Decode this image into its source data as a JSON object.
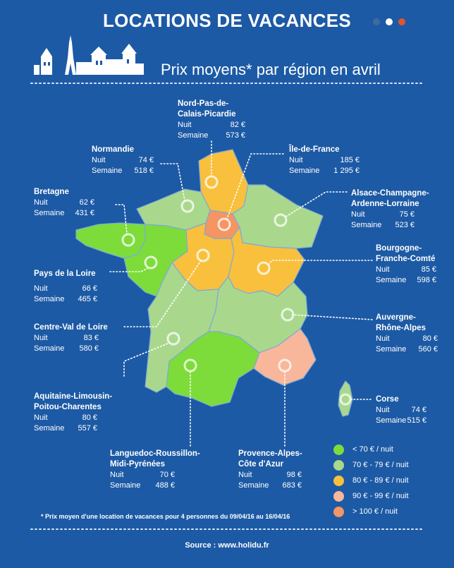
{
  "header": {
    "title": "LOCATIONS DE VACANCES",
    "subtitle": "Prix moyens* par région en avril"
  },
  "colors": {
    "background": "#1d5aa5",
    "lt70": "#7ddc3a",
    "r70_79": "#a9d88c",
    "r80_89": "#f8c03d",
    "r90_99": "#f8b79a",
    "gt100": "#f49563"
  },
  "labels": {
    "nuit": "Nuit",
    "semaine": "Semaine"
  },
  "regions": [
    {
      "id": "nord",
      "name1": "Nord-Pas-de-",
      "name2": "Calais-Picardie",
      "nuit": "82 €",
      "semaine": "573 €"
    },
    {
      "id": "normandie",
      "name1": "Normandie",
      "name2": "",
      "nuit": "74 €",
      "semaine": "518 €"
    },
    {
      "id": "idf",
      "name1": "Île-de-France",
      "name2": "",
      "nuit": "185 €",
      "semaine": "1 295 €"
    },
    {
      "id": "bretagne",
      "name1": "Bretagne",
      "name2": "",
      "nuit": "62 €",
      "semaine": "431 €"
    },
    {
      "id": "alsace",
      "name1": "Alsace-Champagne-",
      "name2": "Ardenne-Lorraine",
      "nuit": "75 €",
      "semaine": "523 €"
    },
    {
      "id": "bourgogne",
      "name1": "Bourgogne-",
      "name2": "Franche-Comté",
      "nuit": "85 €",
      "semaine": "598 €"
    },
    {
      "id": "pdl",
      "name1": "Pays de la Loire",
      "name2": "",
      "nuit": "66 €",
      "semaine": "465 €"
    },
    {
      "id": "centre",
      "name1": "Centre-Val de Loire",
      "name2": "",
      "nuit": "83 €",
      "semaine": "580 €"
    },
    {
      "id": "auvergne",
      "name1": "Auvergne-",
      "name2": "Rhône-Alpes",
      "nuit": "80 €",
      "semaine": "560 €"
    },
    {
      "id": "aquitaine",
      "name1": "Aquitaine-Limousin-",
      "name2": "Poitou-Charentes",
      "nuit": "80 €",
      "semaine": "557 €"
    },
    {
      "id": "corse",
      "name1": "Corse",
      "name2": "",
      "nuit": "74 €",
      "semaine": "515 €"
    },
    {
      "id": "languedoc",
      "name1": "Languedoc-Roussillon-",
      "name2": "Midi-Pyrénées",
      "nuit": "70 €",
      "semaine": "488 €"
    },
    {
      "id": "paca",
      "name1": "Provence-Alpes-",
      "name2": "Côte d'Azur",
      "nuit": "98 €",
      "semaine": "683 €"
    }
  ],
  "legend": [
    {
      "label": "< 70 € / nuit",
      "color": "#7ddc3a"
    },
    {
      "label": "70 € - 79 € / nuit",
      "color": "#a9d88c"
    },
    {
      "label": "80 € - 89 € / nuit",
      "color": "#f8c03d"
    },
    {
      "label": "90 € - 99 € / nuit",
      "color": "#f8b79a"
    },
    {
      "label": "> 100 € / nuit",
      "color": "#f49563"
    }
  ],
  "footnote": "* Prix moyen d'une location de vacances pour 4 personnes du 09/04/16 au 16/04/16",
  "source": "Source : www.holidu.fr"
}
